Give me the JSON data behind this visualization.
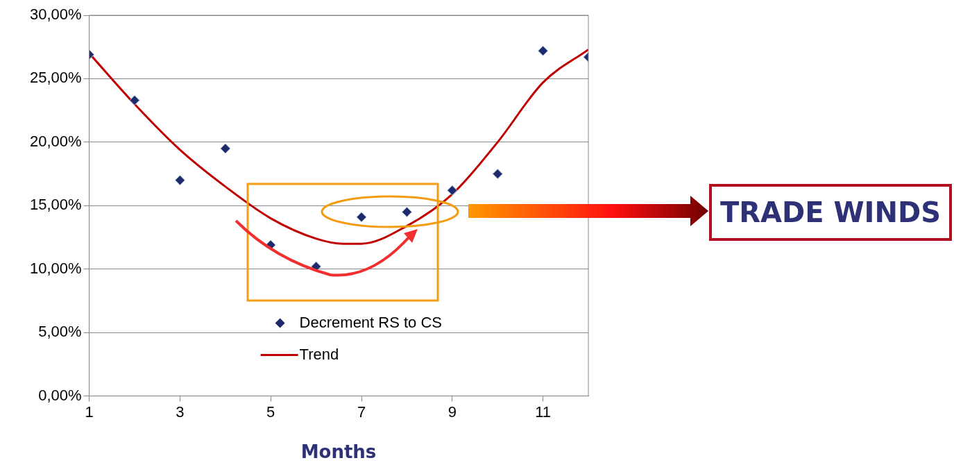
{
  "chart_data": {
    "type": "scatter",
    "xlabel": "Months",
    "annotations": [
      "TRADE WINDS"
    ],
    "xlim": [
      1,
      12
    ],
    "xticks": [
      1,
      3,
      5,
      7,
      9,
      11
    ],
    "ylim": [
      0,
      30
    ],
    "yticks": [
      {
        "value": 0,
        "label": "0,00%"
      },
      {
        "value": 5,
        "label": "5,00%"
      },
      {
        "value": 10,
        "label": "10,00%"
      },
      {
        "value": 15,
        "label": "15,00%"
      },
      {
        "value": 20,
        "label": "20,00%"
      },
      {
        "value": 25,
        "label": "25,00%"
      },
      {
        "value": 30,
        "label": "30,00%"
      }
    ],
    "grid": "y",
    "legend": "bottom",
    "series": [
      {
        "name": "Decrement RS to CS",
        "marker": "diamond",
        "color": "#1f2a6b",
        "x": [
          1,
          2,
          3,
          4,
          5,
          6,
          7,
          8,
          9,
          10,
          11,
          12
        ],
        "values": [
          26.9,
          23.3,
          17.0,
          19.5,
          11.9,
          10.2,
          14.1,
          14.5,
          16.2,
          17.5,
          27.2,
          26.7
        ]
      },
      {
        "name": "Trend",
        "type": "line",
        "color": "#c00000",
        "x": [
          1,
          2,
          3,
          4,
          5,
          6,
          6.6,
          7,
          8,
          9,
          10,
          11,
          12
        ],
        "values": [
          27.0,
          23.0,
          19.4,
          16.5,
          14.0,
          12.4,
          12.0,
          12.0,
          13.4,
          15.9,
          20.0,
          24.7,
          27.3
        ]
      }
    ]
  }
}
